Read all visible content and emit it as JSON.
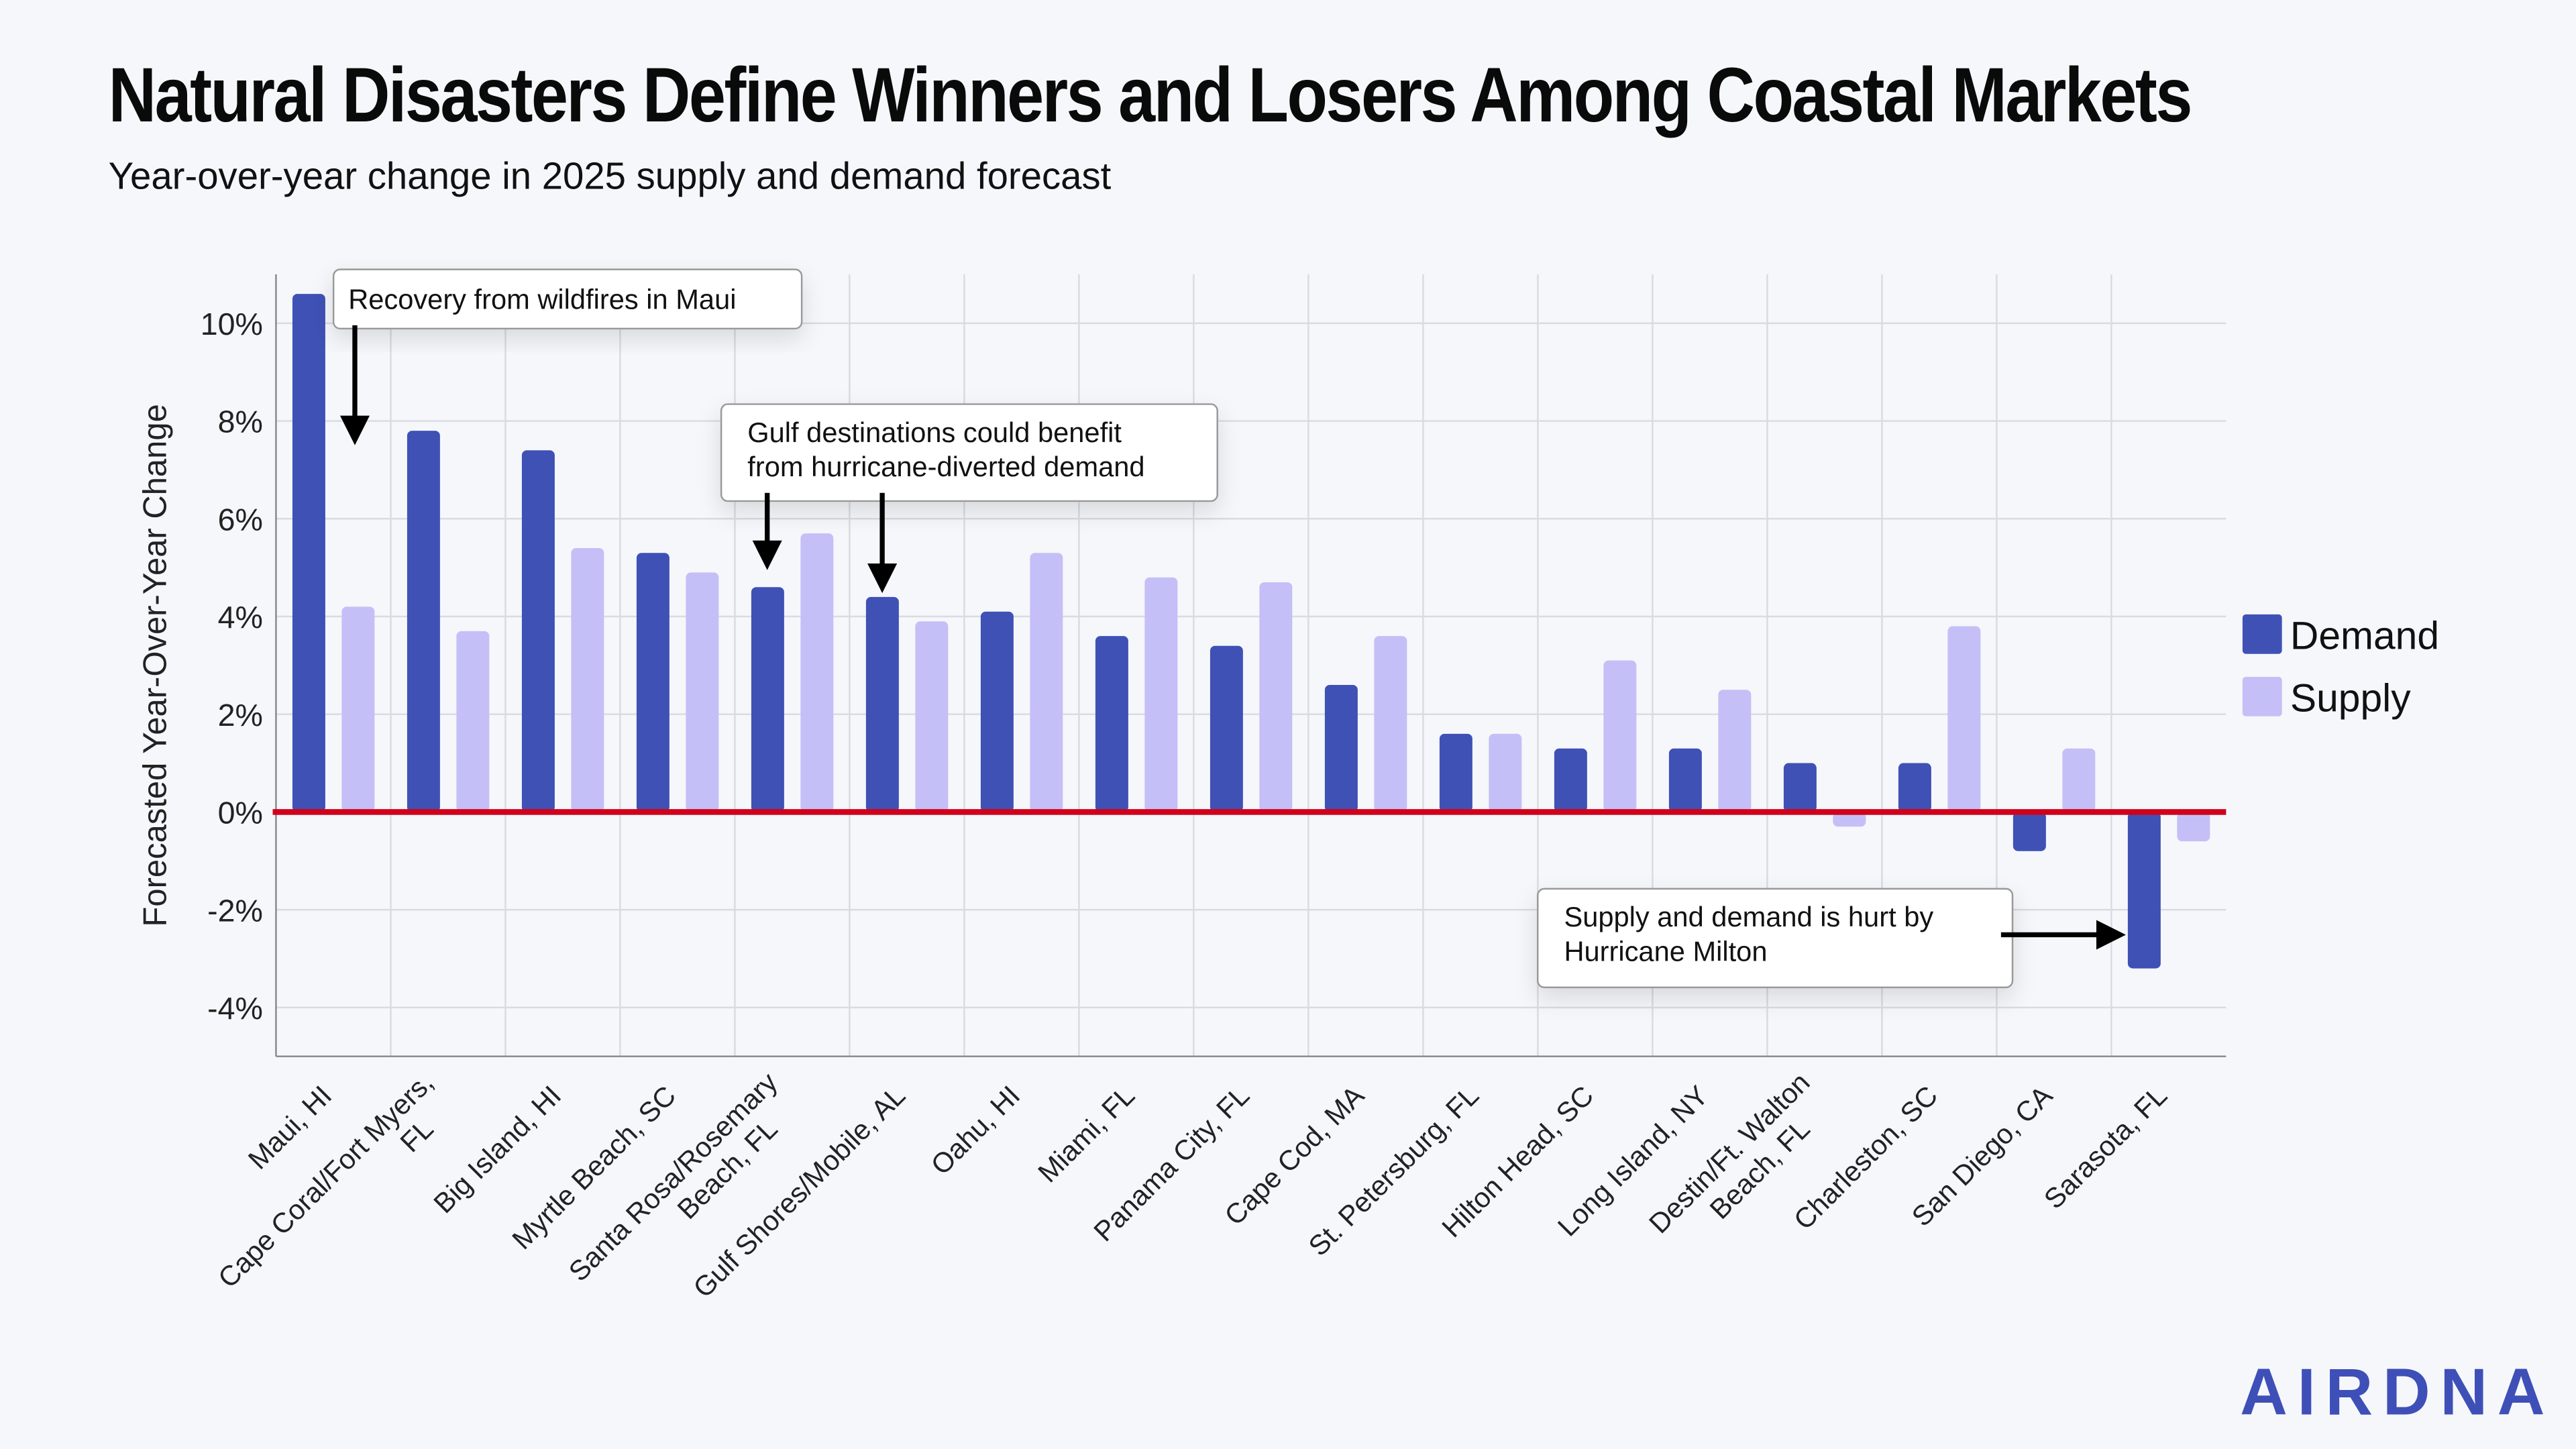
{
  "title": "Natural Disasters Define Winners and Losers Among Coastal Markets",
  "subtitle": "Year-over-year change in 2025 supply and demand forecast",
  "logo_text": "AIRDNA",
  "chart_data": {
    "type": "bar",
    "ylabel": "Forecasted Year-Over-Year Change",
    "ylim": [
      -5,
      11
    ],
    "yticks": [
      -4,
      -2,
      0,
      2,
      4,
      6,
      8,
      10
    ],
    "ytick_labels": [
      "-4%",
      "-2%",
      "0%",
      "2%",
      "4%",
      "6%",
      "8%",
      "10%"
    ],
    "grid": true,
    "legend": "right",
    "categories": [
      "Maui, HI",
      "Cape Coral/Fort Myers, FL",
      "Big Island, HI",
      "Myrtle Beach, SC",
      "Santa Rosa/Rosemary Beach, FL",
      "Gulf Shores/Mobile, AL",
      "Oahu, HI",
      "Miami, FL",
      "Panama City, FL",
      "Cape Cod, MA",
      "St. Petersburg, FL",
      "Hilton Head, SC",
      "Long Island, NY",
      "Destin/Ft. Walton Beach, FL",
      "Charleston, SC",
      "San Diego, CA",
      "Sarasota, FL"
    ],
    "category_lines": [
      [
        "Maui, HI"
      ],
      [
        "Cape Coral/Fort Myers,",
        "FL"
      ],
      [
        "Big Island, HI"
      ],
      [
        "Myrtle Beach, SC"
      ],
      [
        "Santa Rosa/Rosemary",
        "Beach, FL"
      ],
      [
        "Gulf Shores/Mobile, AL"
      ],
      [
        "Oahu, HI"
      ],
      [
        "Miami, FL"
      ],
      [
        "Panama City, FL"
      ],
      [
        "Cape Cod, MA"
      ],
      [
        "St. Petersburg, FL"
      ],
      [
        "Hilton Head, SC"
      ],
      [
        "Long Island, NY"
      ],
      [
        "Destin/Ft. Walton",
        "Beach, FL"
      ],
      [
        "Charleston, SC"
      ],
      [
        "San Diego, CA"
      ],
      [
        "Sarasota, FL"
      ]
    ],
    "series": [
      {
        "name": "Demand",
        "color": "#3f51b5",
        "values": [
          10.6,
          7.8,
          7.4,
          5.3,
          4.6,
          4.4,
          4.1,
          3.6,
          3.4,
          2.6,
          1.6,
          1.3,
          1.3,
          1.0,
          1.0,
          -0.8,
          -3.2
        ]
      },
      {
        "name": "Supply",
        "color": "#c5bff7",
        "values": [
          4.2,
          3.7,
          5.4,
          4.9,
          5.7,
          3.9,
          5.3,
          4.8,
          4.7,
          3.6,
          1.6,
          3.1,
          2.5,
          -0.3,
          3.8,
          1.3,
          -0.6
        ]
      }
    ],
    "zero_line_color": "#d0021b",
    "annotations": [
      {
        "lines": [
          "Recovery from wildfires in Maui"
        ],
        "target": "Maui, HI"
      },
      {
        "lines": [
          "Gulf destinations could benefit",
          "from hurricane-diverted demand"
        ],
        "target": "Santa Rosa/Rosemary Beach, FL; Gulf Shores/Mobile, AL"
      },
      {
        "lines": [
          "Supply and demand is hurt by",
          "Hurricane Milton"
        ],
        "target": "Sarasota, FL"
      }
    ]
  }
}
